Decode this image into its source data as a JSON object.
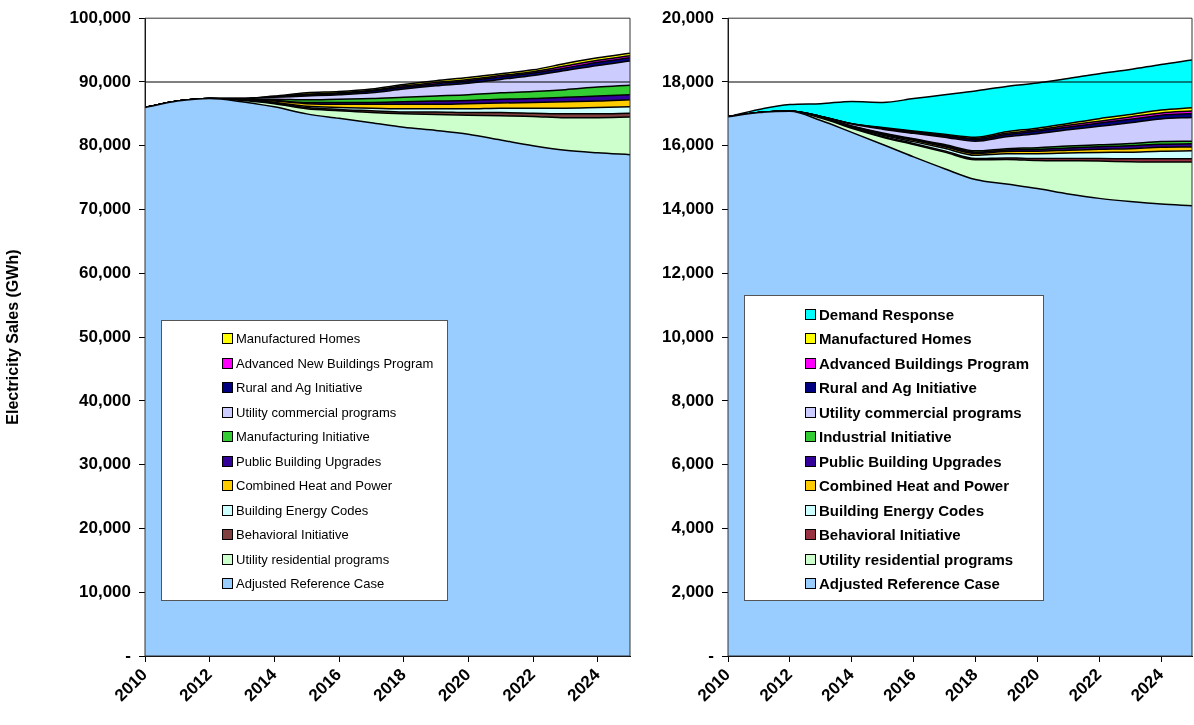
{
  "chart_data": [
    {
      "type": "area",
      "stacked": true,
      "ylabel": "Electricity Sales (GWh)",
      "x": [
        2010,
        2011,
        2012,
        2013,
        2014,
        2015,
        2016,
        2017,
        2018,
        2019,
        2020,
        2021,
        2022,
        2023,
        2024,
        2025
      ],
      "xlim": [
        2010,
        2025
      ],
      "xticks": [
        2010,
        2012,
        2014,
        2016,
        2018,
        2020,
        2022,
        2024
      ],
      "ylim": [
        0,
        100000
      ],
      "yticks": [
        {
          "value": 0,
          "label": "-"
        },
        {
          "value": 10000,
          "label": "10,000"
        },
        {
          "value": 20000,
          "label": "20,000"
        },
        {
          "value": 30000,
          "label": "30,000"
        },
        {
          "value": 40000,
          "label": "40,000"
        },
        {
          "value": 50000,
          "label": "50,000"
        },
        {
          "value": 60000,
          "label": "60,000"
        },
        {
          "value": 70000,
          "label": "70,000"
        },
        {
          "value": 80000,
          "label": "80,000"
        },
        {
          "value": 90000,
          "label": "90,000"
        },
        {
          "value": 100000,
          "label": "100,000"
        }
      ],
      "grid": false,
      "legend": "bottom left",
      "ref_lines": [
        {
          "axis": "y",
          "value": 90000,
          "color": "#000000"
        }
      ],
      "series": [
        {
          "name": "Adjusted Reference Case",
          "color": "#99ccff",
          "values": [
            86000,
            87000,
            87400,
            86900,
            86100,
            85000,
            84300,
            83600,
            82900,
            82400,
            81800,
            80900,
            80000,
            79300,
            78900,
            78600
          ]
        },
        {
          "name": "Utility residential programs",
          "color": "#ccffcc",
          "values": [
            0,
            0,
            0,
            200,
            500,
            800,
            1200,
            1600,
            2100,
            2500,
            3000,
            3800,
            4600,
            5100,
            5500,
            5900
          ]
        },
        {
          "name": "Behavioral Initiative",
          "color": "#804040",
          "values": [
            0,
            0,
            0,
            0,
            100,
            200,
            200,
            300,
            300,
            400,
            400,
            500,
            500,
            600,
            600,
            600
          ]
        },
        {
          "name": "Building Energy Codes",
          "color": "#ccffff",
          "values": [
            0,
            0,
            0,
            0,
            100,
            200,
            300,
            400,
            500,
            500,
            600,
            700,
            800,
            900,
            1000,
            1000
          ]
        },
        {
          "name": "Combined Heat and Power",
          "color": "#ffcc00",
          "values": [
            0,
            0,
            0,
            100,
            200,
            400,
            500,
            600,
            700,
            700,
            800,
            800,
            900,
            1000,
            1000,
            1100
          ]
        },
        {
          "name": "Public Building Upgrades",
          "color": "#330099",
          "values": [
            0,
            0,
            0,
            0,
            100,
            200,
            300,
            300,
            400,
            500,
            500,
            600,
            600,
            700,
            800,
            800
          ]
        },
        {
          "name": "Manufacturing Initiative",
          "color": "#33cc33",
          "values": [
            0,
            0,
            0,
            100,
            200,
            400,
            500,
            600,
            700,
            800,
            900,
            1000,
            1100,
            1200,
            1400,
            1500
          ]
        },
        {
          "name": "Utility commercial programs",
          "color": "#ccccff",
          "values": [
            0,
            0,
            0,
            100,
            300,
            600,
            700,
            900,
            1300,
            1600,
            1800,
            2100,
            2500,
            3000,
            3400,
            3800
          ]
        },
        {
          "name": "Rural and Ag Initiative",
          "color": "#000080",
          "values": [
            0,
            0,
            0,
            0,
            100,
            200,
            200,
            300,
            300,
            300,
            400,
            400,
            400,
            400,
            500,
            500
          ]
        },
        {
          "name": "Advanced New Buildings Program",
          "color": "#ff00ff",
          "values": [
            0,
            0,
            0,
            0,
            0,
            100,
            100,
            100,
            200,
            200,
            200,
            200,
            200,
            300,
            300,
            300
          ]
        },
        {
          "name": "Manufactured Homes",
          "color": "#ffff00",
          "values": [
            0,
            0,
            0,
            0,
            100,
            200,
            200,
            200,
            200,
            300,
            300,
            300,
            300,
            400,
            400,
            400
          ]
        }
      ]
    },
    {
      "type": "area",
      "stacked": true,
      "x": [
        2010,
        2011,
        2012,
        2013,
        2014,
        2015,
        2016,
        2017,
        2018,
        2019,
        2020,
        2021,
        2022,
        2023,
        2024,
        2025
      ],
      "xlim": [
        2010,
        2025
      ],
      "xticks": [
        2010,
        2012,
        2014,
        2016,
        2018,
        2020,
        2022,
        2024
      ],
      "ylim": [
        0,
        20000
      ],
      "yticks": [
        {
          "value": 0,
          "label": "-"
        },
        {
          "value": 2000,
          "label": "2,000"
        },
        {
          "value": 4000,
          "label": "4,000"
        },
        {
          "value": 6000,
          "label": "6,000"
        },
        {
          "value": 8000,
          "label": "8,000"
        },
        {
          "value": 10000,
          "label": "10,000"
        },
        {
          "value": 12000,
          "label": "12,000"
        },
        {
          "value": 14000,
          "label": "14,000"
        },
        {
          "value": 16000,
          "label": "16,000"
        },
        {
          "value": 18000,
          "label": "18,000"
        },
        {
          "value": 20000,
          "label": "20,000"
        }
      ],
      "grid": false,
      "legend": "bottom left",
      "ref_lines": [
        {
          "axis": "y",
          "value": 18000,
          "color": "#000000"
        }
      ],
      "series": [
        {
          "name": "Adjusted Reference Case",
          "color": "#99ccff",
          "values": [
            16910,
            17040,
            17080,
            16790,
            16420,
            16040,
            15650,
            15280,
            14940,
            14800,
            14660,
            14490,
            14350,
            14250,
            14170,
            14120
          ]
        },
        {
          "name": "Utility residential programs",
          "color": "#ccffcc",
          "values": [
            0,
            0,
            0,
            80,
            130,
            230,
            390,
            520,
            620,
            770,
            880,
            1040,
            1170,
            1250,
            1320,
            1370
          ]
        },
        {
          "name": "Behavioral Initiative",
          "color": "#993344",
          "values": [
            0,
            0,
            0,
            0,
            10,
            20,
            30,
            40,
            40,
            50,
            60,
            70,
            80,
            90,
            100,
            100
          ]
        },
        {
          "name": "Building Energy Codes",
          "color": "#ccffff",
          "values": [
            0,
            0,
            0,
            10,
            20,
            40,
            60,
            80,
            100,
            130,
            150,
            170,
            190,
            210,
            240,
            250
          ]
        },
        {
          "name": "Combined Heat and Power",
          "color": "#ffcc00",
          "values": [
            0,
            0,
            0,
            10,
            20,
            30,
            40,
            50,
            60,
            70,
            80,
            90,
            100,
            110,
            120,
            120
          ]
        },
        {
          "name": "Public Building Upgrades",
          "color": "#330099",
          "values": [
            0,
            0,
            0,
            0,
            10,
            20,
            30,
            40,
            40,
            50,
            60,
            70,
            80,
            90,
            100,
            100
          ]
        },
        {
          "name": "Industrial Initiative",
          "color": "#33cc33",
          "values": [
            0,
            0,
            0,
            0,
            10,
            20,
            20,
            30,
            40,
            40,
            50,
            60,
            60,
            70,
            80,
            80
          ]
        },
        {
          "name": "Utility commercial programs",
          "color": "#ccccff",
          "values": [
            0,
            0,
            10,
            30,
            60,
            120,
            170,
            230,
            300,
            370,
            440,
            510,
            580,
            650,
            710,
            750
          ]
        },
        {
          "name": "Rural and Ag Initiative",
          "color": "#000080",
          "values": [
            0,
            0,
            0,
            0,
            10,
            20,
            30,
            40,
            60,
            70,
            80,
            90,
            100,
            110,
            120,
            120
          ]
        },
        {
          "name": "Advanced Buildings Program",
          "color": "#ff00ff",
          "values": [
            0,
            0,
            0,
            0,
            0,
            10,
            20,
            20,
            30,
            40,
            40,
            50,
            60,
            70,
            70,
            80
          ]
        },
        {
          "name": "Manufactured Homes",
          "color": "#ffff00",
          "values": [
            0,
            0,
            0,
            0,
            0,
            20,
            20,
            30,
            40,
            50,
            50,
            60,
            80,
            80,
            90,
            100
          ]
        },
        {
          "name": "Demand Response",
          "color": "#00ffff",
          "values": [
            0,
            100,
            200,
            400,
            700,
            790,
            1020,
            1240,
            1450,
            1420,
            1420,
            1410,
            1410,
            1410,
            1430,
            1500
          ]
        }
      ]
    }
  ]
}
